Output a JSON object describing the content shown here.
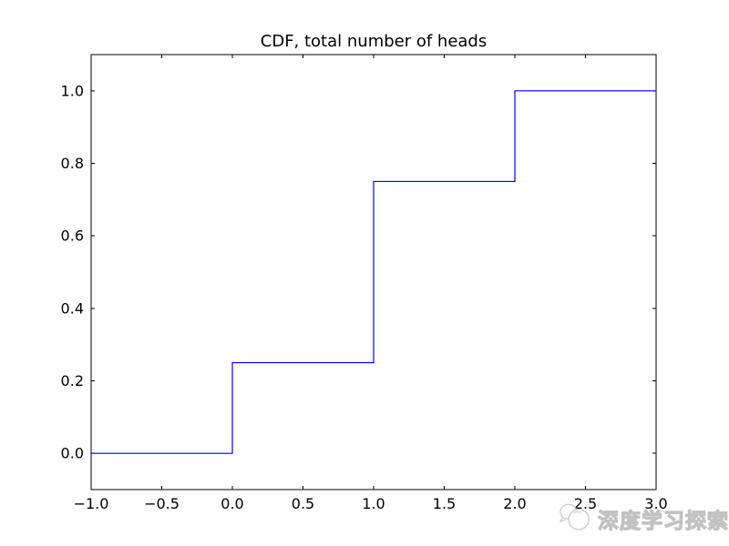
{
  "chart_data": {
    "type": "line",
    "subtype": "step-cdf",
    "title": "CDF, total number of heads",
    "xlabel": "",
    "ylabel": "",
    "xlim": [
      -1.0,
      3.0
    ],
    "ylim": [
      -0.1,
      1.1
    ],
    "xticks": [
      -1.0,
      -0.5,
      0.0,
      0.5,
      1.0,
      1.5,
      2.0,
      2.5,
      3.0
    ],
    "xtick_labels": [
      "−1.0",
      "−0.5",
      "0.0",
      "0.5",
      "1.0",
      "1.5",
      "2.0",
      "2.5",
      "3.0"
    ],
    "yticks": [
      0.0,
      0.2,
      0.4,
      0.6,
      0.8,
      1.0
    ],
    "ytick_labels": [
      "0.0",
      "0.2",
      "0.4",
      "0.6",
      "0.8",
      "1.0"
    ],
    "grid": false,
    "legend": null,
    "line_color": "#0000ff",
    "axis_color": "#000000",
    "background_color": "#ffffff",
    "series": [
      {
        "name": "cdf",
        "x": [
          -1,
          0,
          0,
          1,
          1,
          2,
          2,
          3
        ],
        "y": [
          0.0,
          0.0,
          0.25,
          0.25,
          0.75,
          0.75,
          1.0,
          1.0
        ]
      }
    ],
    "steps": [
      {
        "x": 0,
        "cdf": 0.25
      },
      {
        "x": 1,
        "cdf": 0.75
      },
      {
        "x": 2,
        "cdf": 1.0
      }
    ]
  },
  "watermark": {
    "text": "深度学习探索",
    "icon": "speech-bubble-logo-icon",
    "color": "#c2c2c2"
  }
}
